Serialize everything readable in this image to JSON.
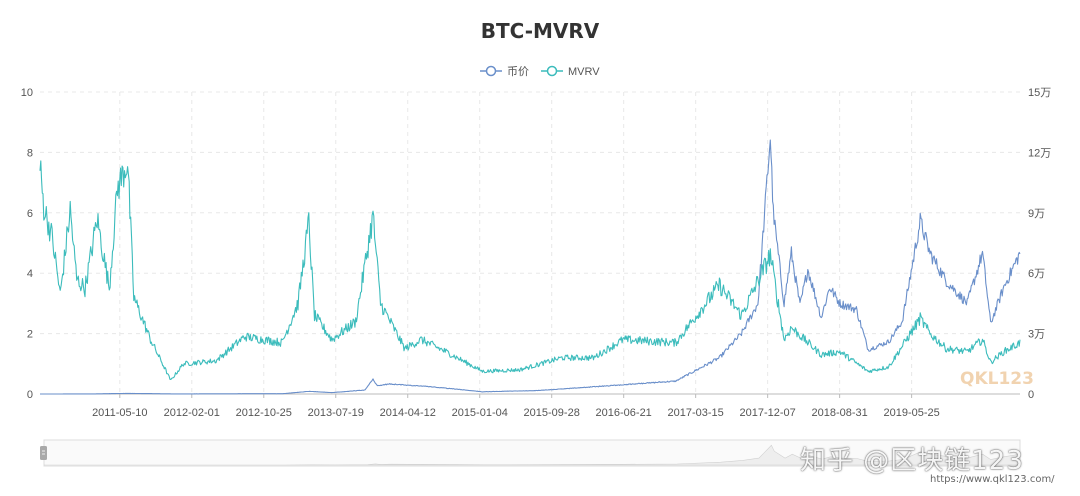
{
  "chart_data": {
    "type": "line",
    "title": "BTC-MVRV",
    "legend": {
      "placement": "top-center",
      "entries": [
        "币价",
        "MVRV"
      ]
    },
    "x_axis": {
      "type": "date",
      "range": [
        "2010-07-18",
        "2020-06-30"
      ],
      "tick_labels": [
        "2011-05-10",
        "2012-02-01",
        "2012-10-25",
        "2013-07-19",
        "2014-04-12",
        "2015-01-04",
        "2015-09-28",
        "2016-06-21",
        "2017-03-15",
        "2017-12-07",
        "2018-08-31",
        "2019-05-25"
      ]
    },
    "y_axis_left": {
      "range": [
        0,
        10
      ],
      "ticks": [
        "0",
        "2",
        "4",
        "6",
        "8",
        "10"
      ]
    },
    "y_axis_right": {
      "range": [
        0,
        150000
      ],
      "ticks": [
        "0",
        "3万",
        "6万",
        "9万",
        "12万",
        "15万"
      ]
    },
    "grid": true,
    "series": [
      {
        "name": "币价",
        "axis": "right",
        "color": "#6a8fca",
        "points": [
          [
            "2010-07-18",
            5
          ],
          [
            "2011-02-01",
            50
          ],
          [
            "2011-06-08",
            300
          ],
          [
            "2011-12-01",
            50
          ],
          [
            "2012-08-15",
            130
          ],
          [
            "2013-01-01",
            130
          ],
          [
            "2013-04-10",
            1300
          ],
          [
            "2013-07-05",
            700
          ],
          [
            "2013-11-05",
            2000
          ],
          [
            "2013-12-04",
            7300
          ],
          [
            "2013-12-20",
            4000
          ],
          [
            "2014-02-01",
            5000
          ],
          [
            "2014-06-01",
            4000
          ],
          [
            "2014-10-01",
            2500
          ],
          [
            "2015-01-14",
            1100
          ],
          [
            "2015-08-01",
            1700
          ],
          [
            "2015-11-05",
            2500
          ],
          [
            "2016-06-18",
            4600
          ],
          [
            "2016-12-31",
            6400
          ],
          [
            "2017-06-11",
            18000
          ],
          [
            "2017-09-01",
            30000
          ],
          [
            "2017-11-01",
            45000
          ],
          [
            "2017-12-17",
            128000
          ],
          [
            "2017-12-28",
            90000
          ],
          [
            "2018-02-06",
            45000
          ],
          [
            "2018-03-05",
            70000
          ],
          [
            "2018-04-06",
            44000
          ],
          [
            "2018-05-05",
            62000
          ],
          [
            "2018-06-24",
            38000
          ],
          [
            "2018-07-25",
            53000
          ],
          [
            "2018-09-01",
            45000
          ],
          [
            "2018-11-01",
            42000
          ],
          [
            "2018-12-15",
            22000
          ],
          [
            "2019-03-01",
            26000
          ],
          [
            "2019-04-20",
            36000
          ],
          [
            "2019-06-26",
            86000
          ],
          [
            "2019-08-01",
            70000
          ],
          [
            "2019-10-01",
            56000
          ],
          [
            "2019-12-17",
            45000
          ],
          [
            "2020-02-12",
            70000
          ],
          [
            "2020-03-13",
            35000
          ],
          [
            "2020-05-01",
            53000
          ],
          [
            "2020-06-30",
            70000
          ]
        ]
      },
      {
        "name": "MVRV",
        "axis": "left",
        "color": "#3cbcbc",
        "points": [
          [
            "2010-07-18",
            7.5
          ],
          [
            "2010-08-01",
            6.2
          ],
          [
            "2010-09-01",
            5.2
          ],
          [
            "2010-10-01",
            3.3
          ],
          [
            "2010-11-07",
            6.1
          ],
          [
            "2010-12-01",
            3.8
          ],
          [
            "2011-01-01",
            3.5
          ],
          [
            "2011-02-15",
            5.8
          ],
          [
            "2011-04-01",
            3.5
          ],
          [
            "2011-05-01",
            6.8
          ],
          [
            "2011-06-08",
            7.7
          ],
          [
            "2011-07-01",
            3.2
          ],
          [
            "2011-09-01",
            1.8
          ],
          [
            "2011-11-15",
            0.45
          ],
          [
            "2012-01-01",
            1.0
          ],
          [
            "2012-05-01",
            1.1
          ],
          [
            "2012-08-15",
            1.9
          ],
          [
            "2013-01-01",
            1.7
          ],
          [
            "2013-03-01",
            3.0
          ],
          [
            "2013-04-10",
            5.7
          ],
          [
            "2013-05-01",
            2.6
          ],
          [
            "2013-07-05",
            1.8
          ],
          [
            "2013-10-01",
            2.4
          ],
          [
            "2013-12-04",
            5.9
          ],
          [
            "2014-01-01",
            3.0
          ],
          [
            "2014-04-01",
            1.5
          ],
          [
            "2014-06-01",
            1.8
          ],
          [
            "2014-09-01",
            1.4
          ],
          [
            "2015-01-14",
            0.75
          ],
          [
            "2015-06-01",
            0.8
          ],
          [
            "2015-11-05",
            1.2
          ],
          [
            "2016-03-01",
            1.2
          ],
          [
            "2016-06-18",
            1.8
          ],
          [
            "2016-12-31",
            1.7
          ],
          [
            "2017-06-11",
            3.6
          ],
          [
            "2017-09-01",
            2.6
          ],
          [
            "2017-12-17",
            4.6
          ],
          [
            "2018-02-06",
            1.8
          ],
          [
            "2018-03-05",
            2.2
          ],
          [
            "2018-06-24",
            1.3
          ],
          [
            "2018-09-01",
            1.4
          ],
          [
            "2018-12-15",
            0.75
          ],
          [
            "2019-03-01",
            0.9
          ],
          [
            "2019-06-26",
            2.5
          ],
          [
            "2019-08-01",
            2.0
          ],
          [
            "2019-10-01",
            1.5
          ],
          [
            "2019-12-17",
            1.4
          ],
          [
            "2020-02-12",
            1.8
          ],
          [
            "2020-03-13",
            1.05
          ],
          [
            "2020-05-01",
            1.4
          ],
          [
            "2020-06-30",
            1.7
          ]
        ]
      }
    ],
    "watermarks": [
      "QKL123",
      "知乎 @区块链123",
      "https://www.qkl123.com/"
    ]
  }
}
